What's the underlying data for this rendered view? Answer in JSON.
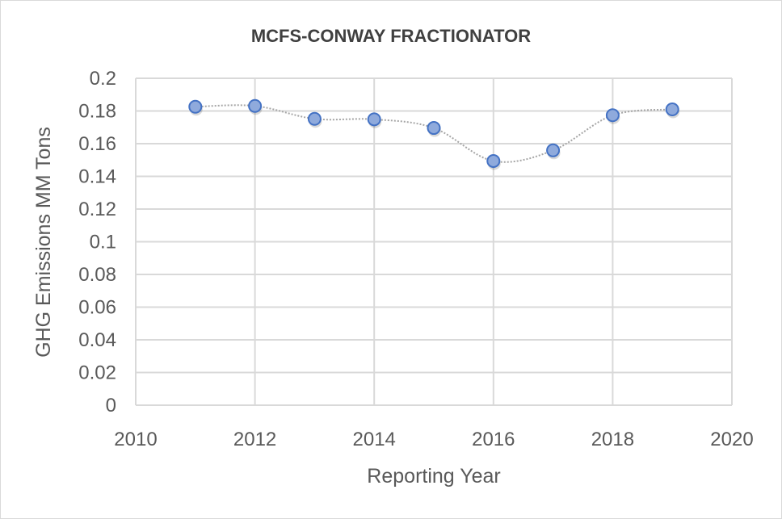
{
  "chart_data": {
    "type": "scatter",
    "title": "MCFS-CONWAY FRACTIONATOR",
    "xlabel": "Reporting Year",
    "ylabel": "GHG Emissions MM Tons",
    "x": [
      2011,
      2012,
      2013,
      2014,
      2015,
      2016,
      2017,
      2018,
      2019
    ],
    "y": [
      0.1826,
      0.1831,
      0.1752,
      0.1749,
      0.1696,
      0.1494,
      0.1559,
      0.1774,
      0.181
    ],
    "xlim": [
      2010,
      2020
    ],
    "ylim": [
      0,
      0.2
    ],
    "xticks": [
      "2010",
      "2012",
      "2014",
      "2016",
      "2018",
      "2020"
    ],
    "yticks": [
      "0",
      "0.02",
      "0.04",
      "0.06",
      "0.08",
      "0.1",
      "0.12",
      "0.14",
      "0.16",
      "0.18",
      "0.2"
    ],
    "grid": true,
    "line_style": "smoothed dotted",
    "colors": {
      "marker_fill": "#8faadc",
      "marker_edge": "#4472c4",
      "line": "#a6a6a6",
      "grid": "#d9d9d9"
    }
  }
}
